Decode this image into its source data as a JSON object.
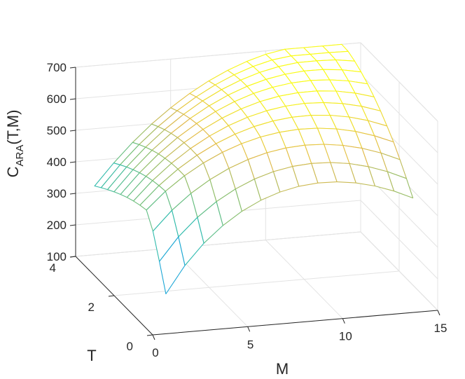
{
  "chart_data": {
    "type": "surface",
    "xlabel": "M",
    "ylabel": "T",
    "zlabel_main": "C",
    "zlabel_sub": "ARA",
    "zlabel_tail": "(T,M)",
    "xlim": [
      0,
      15
    ],
    "ylim": [
      0,
      4
    ],
    "zlim": [
      100,
      700
    ],
    "xticks": [
      "0",
      "5",
      "10",
      "15"
    ],
    "yticks": [
      "0",
      "2",
      "4"
    ],
    "zticks": [
      "100",
      "200",
      "300",
      "400",
      "500",
      "600",
      "700"
    ],
    "grid": true,
    "colormap": [
      "#3e26a8",
      "#2e87f7",
      "#14bac3",
      "#79bf72",
      "#e1b94b",
      "#f9fb15"
    ],
    "surface_samples": [
      {
        "T": 0.3,
        "M": 1,
        "C": 100
      },
      {
        "T": 0.7,
        "M": 1,
        "C": 270
      },
      {
        "T": 2.0,
        "M": 1,
        "C": 440
      },
      {
        "T": 4.0,
        "M": 1,
        "C": 530
      },
      {
        "T": 0.3,
        "M": 3,
        "C": 310
      },
      {
        "T": 1.0,
        "M": 5,
        "C": 470
      },
      {
        "T": 2.0,
        "M": 7,
        "C": 620
      },
      {
        "T": 4.0,
        "M": 8,
        "C": 650
      },
      {
        "T": 0.3,
        "M": 10,
        "C": 520
      },
      {
        "T": 2.0,
        "M": 11,
        "C": 660
      },
      {
        "T": 4.0,
        "M": 12,
        "C": 620
      },
      {
        "T": 0.3,
        "M": 13,
        "C": 470
      },
      {
        "T": 4.0,
        "M": 13,
        "C": 560
      }
    ]
  }
}
